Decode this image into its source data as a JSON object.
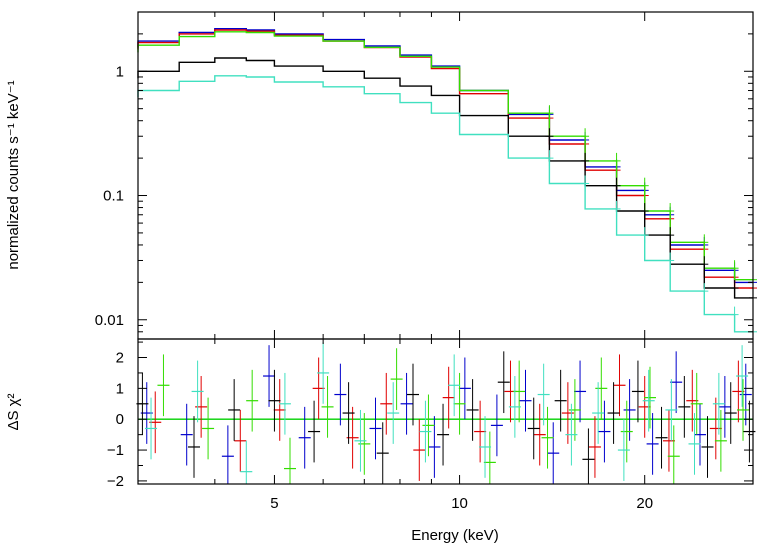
{
  "chart_data": {
    "type": "line",
    "xlabel": "Energy (keV)",
    "x_scale": "log",
    "xlim": [
      3.0,
      30.0
    ],
    "x_ticks": [
      5,
      10,
      20
    ],
    "x_tick_labels": [
      "5",
      "10",
      "20"
    ],
    "panels": [
      {
        "name": "spectrum",
        "ylabel": "normalized counts s⁻¹ keV⁻¹",
        "y_scale": "log",
        "ylim": [
          0.007,
          3.0
        ],
        "y_ticks": [
          0.01,
          0.1,
          1
        ],
        "y_tick_labels": [
          "0.01",
          "0.1",
          "1"
        ]
      },
      {
        "name": "residuals",
        "ylabel": "ΔS χ²",
        "y_scale": "linear",
        "ylim": [
          -2.1,
          2.6
        ],
        "y_ticks": [
          -2,
          -1,
          0,
          1,
          2
        ],
        "y_tick_labels": [
          "−2",
          "−1",
          "0",
          "1",
          "2"
        ]
      }
    ],
    "series": [
      {
        "name": "blue",
        "color": "#0000cc",
        "x": [
          3,
          3.5,
          4,
          4.5,
          5,
          6,
          7,
          8,
          9,
          10,
          12,
          14,
          16,
          18,
          20,
          22,
          25,
          28,
          30
        ],
        "y": [
          1.55,
          1.75,
          2.05,
          2.2,
          2.15,
          2.0,
          1.8,
          1.6,
          1.35,
          1.1,
          0.7,
          0.45,
          0.28,
          0.17,
          0.11,
          0.07,
          0.04,
          0.025,
          0.02
        ]
      },
      {
        "name": "red",
        "color": "#e00000",
        "x": [
          3,
          3.5,
          4,
          4.5,
          5,
          6,
          7,
          8,
          9,
          10,
          12,
          14,
          16,
          18,
          20,
          22,
          25,
          28,
          30
        ],
        "y": [
          1.5,
          1.7,
          2.0,
          2.15,
          2.1,
          1.95,
          1.75,
          1.55,
          1.3,
          1.05,
          0.66,
          0.42,
          0.26,
          0.16,
          0.1,
          0.065,
          0.037,
          0.022,
          0.018
        ]
      },
      {
        "name": "green",
        "color": "#33dd00",
        "x": [
          3,
          3.5,
          4,
          4.5,
          5,
          6,
          7,
          8,
          9,
          10,
          12,
          14,
          16,
          18,
          20,
          22,
          25,
          28,
          30
        ],
        "y": [
          1.42,
          1.62,
          1.9,
          2.08,
          2.05,
          1.92,
          1.75,
          1.56,
          1.32,
          1.08,
          0.7,
          0.46,
          0.3,
          0.19,
          0.12,
          0.075,
          0.042,
          0.026,
          0.021
        ]
      },
      {
        "name": "black",
        "color": "#000000",
        "x": [
          3,
          3.5,
          4,
          4.5,
          5,
          6,
          7,
          8,
          9,
          10,
          12,
          14,
          16,
          18,
          20,
          22,
          25,
          28,
          30
        ],
        "y": [
          0.88,
          1.0,
          1.18,
          1.28,
          1.22,
          1.1,
          1.0,
          0.88,
          0.76,
          0.64,
          0.44,
          0.3,
          0.19,
          0.12,
          0.075,
          0.048,
          0.028,
          0.018,
          0.015
        ]
      },
      {
        "name": "cyan",
        "color": "#40e0c0",
        "x": [
          3,
          3.5,
          4,
          4.5,
          5,
          6,
          7,
          8,
          9,
          10,
          12,
          14,
          16,
          18,
          20,
          22,
          25,
          28,
          30
        ],
        "y": [
          0.62,
          0.7,
          0.83,
          0.92,
          0.9,
          0.82,
          0.75,
          0.66,
          0.56,
          0.46,
          0.31,
          0.2,
          0.125,
          0.078,
          0.048,
          0.03,
          0.017,
          0.011,
          0.008
        ]
      }
    ],
    "residual_series": [
      {
        "name": "blue",
        "color": "#0000cc",
        "x": [
          3.1,
          3.6,
          4.2,
          4.9,
          5.6,
          6.4,
          7.3,
          8.2,
          9.1,
          10.2,
          11.5,
          12.8,
          14.2,
          15.7,
          17.2,
          18.9,
          20.6,
          22.5,
          24.6,
          27.0,
          29.2
        ],
        "y": [
          0.2,
          -0.5,
          -1.2,
          1.4,
          -0.6,
          0.8,
          -0.3,
          0.5,
          -0.9,
          1.0,
          -0.2,
          0.6,
          -1.1,
          0.9,
          -0.4,
          0.3,
          -0.8,
          1.2,
          -0.5,
          0.4,
          0.8
        ]
      },
      {
        "name": "red",
        "color": "#e00000",
        "x": [
          3.2,
          3.8,
          4.4,
          5.1,
          5.9,
          6.7,
          7.6,
          8.6,
          9.6,
          10.8,
          12.1,
          13.5,
          15.0,
          16.6,
          18.2,
          20.0,
          21.9,
          23.9,
          26.1,
          28.4
        ],
        "y": [
          -0.1,
          0.4,
          -0.7,
          0.3,
          1.0,
          -0.6,
          0.5,
          -1.0,
          0.7,
          -0.4,
          0.9,
          -0.5,
          0.2,
          -0.9,
          1.1,
          0.4,
          -0.7,
          0.6,
          -0.3,
          0.9
        ]
      },
      {
        "name": "green",
        "color": "#33dd00",
        "x": [
          3.3,
          3.9,
          4.6,
          5.3,
          6.1,
          7.0,
          7.9,
          8.9,
          10.0,
          11.2,
          12.5,
          13.9,
          15.4,
          17.0,
          18.7,
          20.4,
          22.3,
          24.3,
          26.6,
          28.9
        ],
        "y": [
          1.1,
          -0.3,
          0.6,
          -1.6,
          0.4,
          -0.8,
          1.3,
          -0.2,
          0.5,
          -1.4,
          0.9,
          -0.6,
          0.3,
          1.0,
          -0.4,
          0.7,
          -1.2,
          0.5,
          -0.7,
          0.3
        ]
      },
      {
        "name": "black",
        "color": "#000000",
        "x": [
          3.05,
          3.7,
          4.3,
          5.0,
          5.8,
          6.6,
          7.5,
          8.4,
          9.4,
          10.5,
          11.8,
          13.2,
          14.6,
          16.2,
          17.8,
          19.5,
          21.3,
          23.2,
          25.3,
          27.6,
          29.6
        ],
        "y": [
          0.5,
          -0.9,
          0.3,
          0.6,
          -0.4,
          0.2,
          -1.1,
          0.8,
          -0.5,
          0.3,
          1.2,
          -0.3,
          0.6,
          -1.3,
          0.2,
          0.9,
          -0.6,
          0.4,
          -0.9,
          0.2,
          -0.4
        ]
      },
      {
        "name": "cyan",
        "color": "#40e0c0",
        "x": [
          3.15,
          3.75,
          4.5,
          5.2,
          6.0,
          6.9,
          7.8,
          8.8,
          9.8,
          11.0,
          12.3,
          13.7,
          15.2,
          16.8,
          18.5,
          20.3,
          22.1,
          24.1,
          26.4,
          28.8
        ],
        "y": [
          -0.3,
          0.9,
          -1.7,
          0.5,
          1.5,
          -0.7,
          0.2,
          -0.4,
          1.1,
          -0.9,
          0.4,
          0.8,
          -0.5,
          0.2,
          -1.0,
          0.6,
          0.3,
          -0.8,
          0.5,
          1.4
        ]
      }
    ]
  }
}
